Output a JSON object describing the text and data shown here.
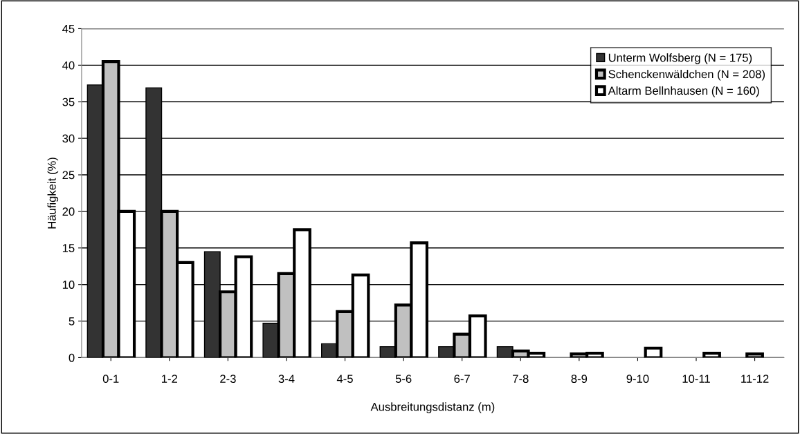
{
  "chart_data": {
    "type": "bar",
    "xlabel": "Ausbreitungsdistanz (m)",
    "ylabel": "Häufigkeit (%)",
    "categories": [
      "0-1",
      "1-2",
      "2-3",
      "3-4",
      "4-5",
      "5-6",
      "6-7",
      "7-8",
      "8-9",
      "9-10",
      "10-11",
      "11-12"
    ],
    "series": [
      {
        "name": "Unterm Wolfsberg (N = 175)",
        "color": "#333333",
        "values": [
          37.3,
          36.9,
          14.5,
          4.7,
          1.9,
          1.5,
          1.5,
          1.5,
          null,
          null,
          null,
          null
        ]
      },
      {
        "name": "Schenckenwäldchen (N = 208)",
        "color": "#c0c0c0",
        "values": [
          40.5,
          20.0,
          9.0,
          11.5,
          6.3,
          7.2,
          3.2,
          0.9,
          0.5,
          null,
          null,
          0.5
        ]
      },
      {
        "name": "Altarm Bellnhausen (N = 160)",
        "color": "#ffffff",
        "values": [
          20.0,
          13.0,
          13.8,
          17.5,
          11.3,
          15.7,
          5.7,
          0.6,
          0.6,
          1.3,
          0.6,
          null
        ]
      }
    ],
    "ylim": [
      0,
      45
    ],
    "yticks": [
      0,
      5,
      10,
      15,
      20,
      25,
      30,
      35,
      40,
      45
    ],
    "grid": "y",
    "legend": "top right"
  }
}
